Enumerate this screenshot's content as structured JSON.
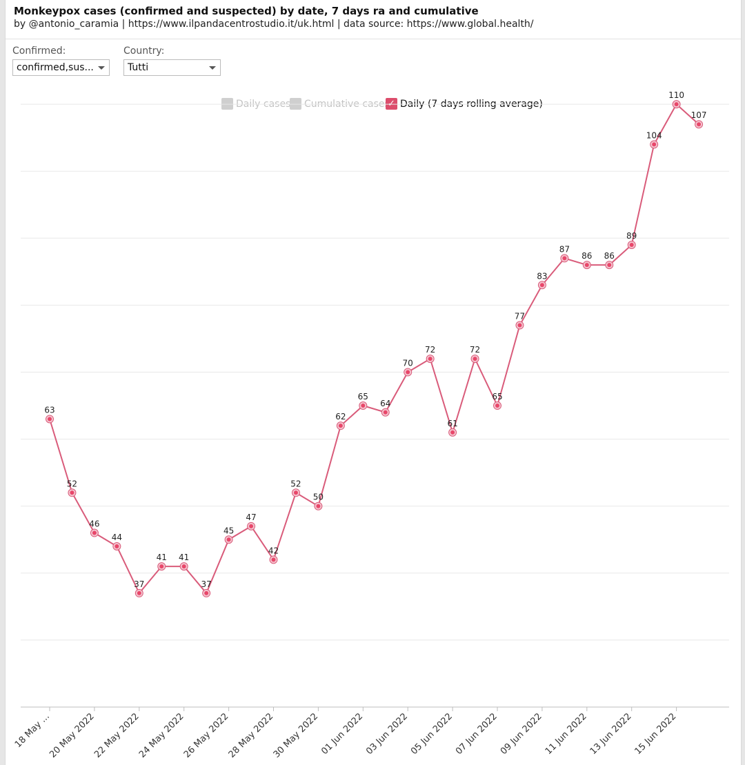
{
  "header": {
    "title": "Monkeypox cases (confirmed and suspected) by date, 7 days ra and cumulative",
    "subtitle": "by @antonio_caramia | https://www.ilpandacentrostudio.it/uk.html | data source: https://www.global.health/"
  },
  "controls": {
    "confirmed_label": "Confirmed:",
    "confirmed_value": "confirmed,sus...",
    "country_label": "Country:",
    "country_value": "Tutti"
  },
  "legend": {
    "items": [
      {
        "label": "Daily cases",
        "active": false
      },
      {
        "label": "Cumulative cases",
        "active": false
      },
      {
        "label": "Daily (7 days rolling average)",
        "active": true
      }
    ],
    "check_glyph": "✓"
  },
  "colors": {
    "series": "#d95b7a",
    "series_dot": "#e8476a",
    "grid": "#e8e8e8",
    "axis": "#bdbdbd"
  },
  "chart_data": {
    "type": "line",
    "title": "Monkeypox cases (confirmed and suspected) by date, 7 days ra and cumulative",
    "xlabel": "",
    "ylabel": "",
    "ylim": [
      20,
      120
    ],
    "yticks_gridlines": [
      30,
      40,
      50,
      60,
      70,
      80,
      90,
      100,
      110
    ],
    "grid": true,
    "legend_position": "top-center",
    "x": [
      "18 May 2022",
      "19 May 2022",
      "20 May 2022",
      "21 May 2022",
      "22 May 2022",
      "23 May 2022",
      "24 May 2022",
      "25 May 2022",
      "26 May 2022",
      "27 May 2022",
      "28 May 2022",
      "29 May 2022",
      "30 May 2022",
      "31 May 2022",
      "01 Jun 2022",
      "02 Jun 2022",
      "03 Jun 2022",
      "04 Jun 2022",
      "05 Jun 2022",
      "06 Jun 2022",
      "07 Jun 2022",
      "08 Jun 2022",
      "09 Jun 2022",
      "10 Jun 2022",
      "11 Jun 2022",
      "12 Jun 2022",
      "13 Jun 2022",
      "14 Jun 2022",
      "15 Jun 2022",
      "16 Jun 2022"
    ],
    "x_tick_labels": [
      {
        "index": 0,
        "label": "18 May ..."
      },
      {
        "index": 2,
        "label": "20 May 2022"
      },
      {
        "index": 4,
        "label": "22 May 2022"
      },
      {
        "index": 6,
        "label": "24 May 2022"
      },
      {
        "index": 8,
        "label": "26 May 2022"
      },
      {
        "index": 10,
        "label": "28 May 2022"
      },
      {
        "index": 12,
        "label": "30 May 2022"
      },
      {
        "index": 14,
        "label": "01 Jun 2022"
      },
      {
        "index": 16,
        "label": "03 Jun 2022"
      },
      {
        "index": 18,
        "label": "05 Jun 2022"
      },
      {
        "index": 20,
        "label": "07 Jun 2022"
      },
      {
        "index": 22,
        "label": "09 Jun 2022"
      },
      {
        "index": 24,
        "label": "11 Jun 2022"
      },
      {
        "index": 26,
        "label": "13 Jun 2022"
      },
      {
        "index": 28,
        "label": "15 Jun 2022"
      }
    ],
    "series": [
      {
        "name": "Daily (7 days rolling average)",
        "values": [
          63,
          52,
          46,
          44,
          37,
          41,
          41,
          37,
          45,
          47,
          42,
          52,
          50,
          62,
          65,
          64,
          70,
          72,
          61,
          72,
          65,
          77,
          83,
          87,
          86,
          86,
          89,
          104,
          110,
          107
        ],
        "display_values": [
          "63",
          "52",
          "46",
          "44",
          "37",
          "41",
          "41",
          "37",
          "45",
          "47",
          "42",
          "52",
          "50",
          "62",
          "65",
          "64",
          "70",
          "72",
          "61",
          "72",
          "65",
          "77",
          "83",
          "87",
          "86",
          "86",
          "89",
          "104",
          "110",
          "107"
        ]
      }
    ]
  }
}
